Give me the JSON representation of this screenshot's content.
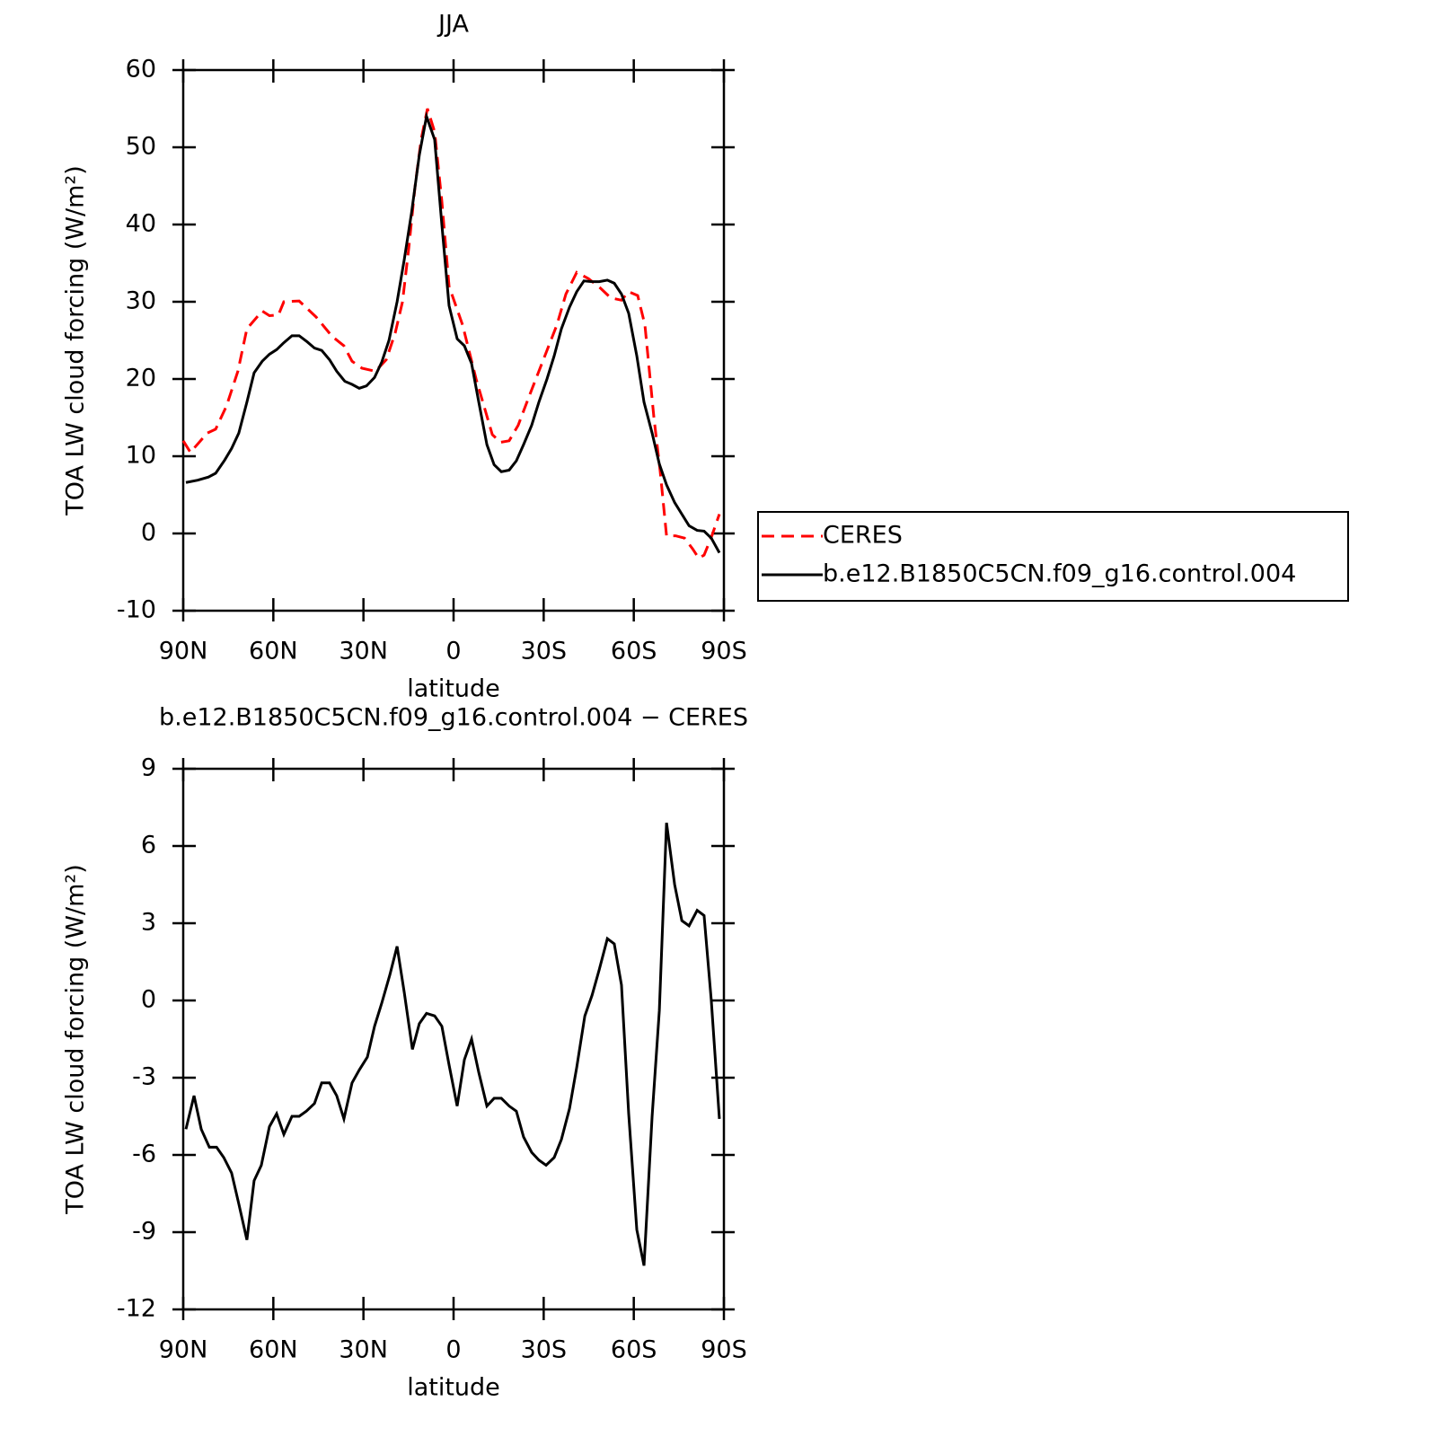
{
  "chart_data": [
    {
      "type": "line",
      "title": "JJA",
      "xlabel": "latitude",
      "ylabel": "TOA LW cloud forcing (W/m²)",
      "xlim": [
        90,
        -90
      ],
      "xticks": [
        {
          "value": 90,
          "label": "90N"
        },
        {
          "value": 60,
          "label": "60N"
        },
        {
          "value": 30,
          "label": "30N"
        },
        0,
        {
          "value": -30,
          "label": "30S"
        },
        {
          "value": -60,
          "label": "60S"
        },
        {
          "value": -90,
          "label": "90S"
        }
      ],
      "ylim": [
        -10,
        60
      ],
      "yticks": [
        -10,
        0,
        10,
        20,
        30,
        40,
        50,
        60
      ],
      "legend": true,
      "series": [
        {
          "name": "CERES",
          "color": "#ff0000",
          "line_style": "dashed",
          "x": [
            90,
            87.6,
            82,
            79.2,
            75.6,
            71.8,
            68.8,
            63.7,
            61.3,
            58.3,
            56.5,
            51.4,
            45.7,
            40.4,
            36.5,
            33.8,
            30.5,
            26,
            22.4,
            19.4,
            17,
            14.9,
            12.8,
            10.8,
            8.7,
            6.3,
            3.9,
            1.5,
            -3,
            -7.5,
            -12.9,
            -15.6,
            -18.5,
            -21.5,
            -25.4,
            -29.9,
            -34.4,
            -37.4,
            -41,
            -44.9,
            -48.8,
            -52.3,
            -55.9,
            -58.3,
            -61.3,
            -63.7,
            -66.7,
            -68.8,
            -70.9,
            -73.9,
            -76.9,
            -79.6,
            -81.6,
            -83.4,
            -85.8,
            -88.5
          ],
          "values": [
            12,
            10.5,
            13,
            13.5,
            16.5,
            21,
            26.5,
            28.8,
            28.2,
            28.3,
            30,
            30.1,
            28,
            25.5,
            24.3,
            22.3,
            21.4,
            21,
            22.5,
            26,
            30,
            37,
            45,
            51,
            55,
            52,
            43,
            32,
            27,
            20,
            12.8,
            11.8,
            12,
            14,
            18,
            22.5,
            27,
            31,
            33.8,
            33,
            31.8,
            30.5,
            30.2,
            31.3,
            30.8,
            27,
            15,
            8,
            -0.3,
            -0.3,
            -0.6,
            -2,
            -3.2,
            -2.8,
            -0.5,
            2.5
          ]
        },
        {
          "name": "b.e12.B1850C5CN.f09_g16.control.004",
          "color": "#000000",
          "line_style": "solid",
          "x": [
            89.1,
            85.2,
            81.6,
            79.2,
            76.2,
            73.9,
            71.5,
            68.8,
            66.4,
            63.7,
            61.3,
            58.9,
            56.5,
            53.8,
            51.4,
            48.7,
            46.3,
            43.9,
            41.3,
            38.9,
            36.2,
            33.8,
            31.4,
            29,
            26.3,
            23.9,
            21.5,
            18.8,
            16.4,
            14,
            11.4,
            9,
            6.3,
            3.9,
            1.5,
            -1.2,
            -3.6,
            -6,
            -8.4,
            -11.1,
            -13.5,
            -15.9,
            -18.5,
            -20.9,
            -23.3,
            -26,
            -28.4,
            -31.1,
            -33.5,
            -35.9,
            -38.6,
            -41,
            -43.4,
            -46.1,
            -48.5,
            -51.2,
            -53.5,
            -55.9,
            -58.3,
            -61,
            -63.4,
            -66.1,
            -68.5,
            -70.9,
            -73.6,
            -76,
            -78.4,
            -81.1,
            -83.4,
            -85.8,
            -88.5
          ],
          "values": [
            6.6,
            6.9,
            7.3,
            7.8,
            9.5,
            11,
            13,
            17,
            20.8,
            22.3,
            23.2,
            23.8,
            24.7,
            25.6,
            25.6,
            24.8,
            24,
            23.7,
            22.5,
            21,
            19.7,
            19.3,
            18.8,
            19.1,
            20.2,
            22.2,
            25,
            30,
            35.5,
            41.5,
            49,
            54,
            51,
            40,
            29.5,
            25.2,
            24.3,
            22,
            17,
            11.5,
            8.9,
            8,
            8.2,
            9.4,
            11.5,
            14,
            17,
            20,
            23,
            26.5,
            29.3,
            31.3,
            32.7,
            32.6,
            32.6,
            32.8,
            32.4,
            31,
            28.5,
            23,
            17,
            13,
            9,
            6.3,
            4,
            2.5,
            1,
            0.4,
            0.3,
            -0.6,
            -2.5
          ]
        }
      ]
    },
    {
      "type": "line",
      "title": "b.e12.B1850C5CN.f09_g16.control.004 − CERES",
      "xlabel": "latitude",
      "ylabel": "TOA LW cloud forcing (W/m²)",
      "xlim": [
        90,
        -90
      ],
      "xticks": [
        {
          "value": 90,
          "label": "90N"
        },
        {
          "value": 60,
          "label": "60N"
        },
        {
          "value": 30,
          "label": "30N"
        },
        0,
        {
          "value": -30,
          "label": "30S"
        },
        {
          "value": -60,
          "label": "60S"
        },
        {
          "value": -90,
          "label": "90S"
        }
      ],
      "ylim": [
        -12,
        9
      ],
      "yticks": [
        -12,
        -9,
        -6,
        -3,
        0,
        3,
        6,
        9
      ],
      "legend": false,
      "series": [
        {
          "color": "#000000",
          "line_style": "solid",
          "x": [
            89.1,
            86.4,
            84,
            81.3,
            78.9,
            76.5,
            73.9,
            71.5,
            68.8,
            66.4,
            64,
            61.3,
            58.9,
            56.5,
            53.8,
            51.4,
            49,
            46.3,
            43.9,
            41.3,
            38.9,
            36.5,
            33.8,
            31.4,
            28.7,
            26.3,
            23.9,
            21.2,
            18.8,
            16.4,
            13.7,
            11.4,
            9,
            6.3,
            3.9,
            1.5,
            -1.2,
            -3.6,
            -6,
            -8.4,
            -11.1,
            -13.5,
            -15.9,
            -18.5,
            -20.9,
            -23.3,
            -26,
            -28.4,
            -30.8,
            -33.5,
            -35.9,
            -38.6,
            -41,
            -43.7,
            -46.1,
            -48.5,
            -51.2,
            -53.5,
            -55.9,
            -58.3,
            -61,
            -63.4,
            -66.1,
            -68.5,
            -70.9,
            -73.6,
            -76,
            -78.4,
            -81.1,
            -83.4,
            -85.8,
            -88.5
          ],
          "values": [
            -5,
            -3.7,
            -5,
            -5.7,
            -5.7,
            -6.1,
            -6.7,
            -7.9,
            -9.3,
            -7,
            -6.4,
            -4.9,
            -4.4,
            -5.2,
            -4.5,
            -4.5,
            -4.3,
            -4,
            -3.2,
            -3.2,
            -3.7,
            -4.6,
            -3.2,
            -2.7,
            -2.2,
            -1,
            -0.1,
            1,
            2.1,
            0.3,
            -1.9,
            -0.9,
            -0.5,
            -0.6,
            -1,
            -2.5,
            -4.1,
            -2.3,
            -1.5,
            -2.8,
            -4.1,
            -3.8,
            -3.8,
            -4.1,
            -4.3,
            -5.3,
            -5.9,
            -6.2,
            -6.4,
            -6.1,
            -5.4,
            -4.2,
            -2.6,
            -0.6,
            0.2,
            1.2,
            2.4,
            2.2,
            0.6,
            -4.4,
            -8.9,
            -10.3,
            -4.5,
            -0.4,
            6.9,
            4.5,
            3.1,
            2.9,
            3.5,
            3.3,
            0,
            -4.6
          ]
        }
      ]
    }
  ]
}
